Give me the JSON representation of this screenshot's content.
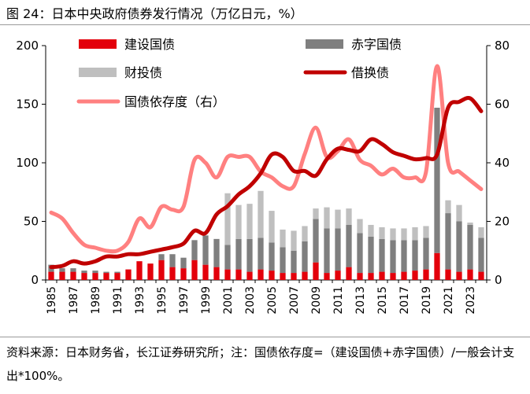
{
  "header": {
    "title": "图 24：日本中央政府债券发行情况（万亿日元，%）"
  },
  "footer": {
    "source": "资料来源：日本财务省，长江证券研究所；注：国债依存度=（建设国债+赤字国债）/一般会计支出*100%。"
  },
  "chart_data": {
    "type": "bar",
    "title": "日本中央政府债券发行情况（万亿日元，%）",
    "xlabel": "",
    "ylabel": "",
    "ylim": [
      0,
      200
    ],
    "y2lim": [
      0,
      80
    ],
    "yticks": [
      "0",
      "50",
      "100",
      "150",
      "200"
    ],
    "y2ticks": [
      "0",
      "20",
      "40",
      "60",
      "80"
    ],
    "years": [
      1985,
      1986,
      1987,
      1988,
      1989,
      1990,
      1991,
      1992,
      1993,
      1994,
      1995,
      1996,
      1997,
      1998,
      1999,
      2000,
      2001,
      2002,
      2003,
      2004,
      2005,
      2006,
      2007,
      2008,
      2009,
      2010,
      2011,
      2012,
      2013,
      2014,
      2015,
      2016,
      2017,
      2018,
      2019,
      2020,
      2021,
      2022,
      2023,
      2024
    ],
    "xtick_labels": [
      "1985",
      "1987",
      "1989",
      "1991",
      "1993",
      "1995",
      "1997",
      "1999",
      "2001",
      "2003",
      "2005",
      "2007",
      "2009",
      "2011",
      "2013",
      "2015",
      "2017",
      "2019",
      "2021",
      "2023"
    ],
    "legend": [
      "建设国债",
      "赤字国债",
      "财投债",
      "借换债",
      "国债依存度（右）"
    ],
    "series": [
      {
        "name": "建设国债",
        "kind": "bar-stack",
        "axis": "left",
        "color": "#e3000b",
        "values": [
          7,
          7,
          7,
          6,
          6,
          6,
          6,
          9,
          16,
          14,
          17,
          11,
          10,
          17,
          13,
          11,
          9,
          9,
          7,
          9,
          8,
          6,
          6,
          7,
          15,
          6,
          8,
          11,
          6,
          6,
          7,
          6,
          7,
          8,
          9,
          23,
          9,
          7,
          9,
          7
        ]
      },
      {
        "name": "赤字国债",
        "kind": "bar-stack",
        "axis": "left",
        "color": "#7f7f7f",
        "values": [
          6,
          3,
          3,
          2,
          2,
          1,
          1,
          0,
          0,
          0,
          5,
          11,
          9,
          17,
          25,
          24,
          21,
          26,
          28,
          27,
          24,
          22,
          19,
          26,
          37,
          38,
          36,
          36,
          34,
          31,
          28,
          28,
          27,
          26,
          27,
          124,
          48,
          43,
          38,
          29
        ]
      },
      {
        "name": "财投债",
        "kind": "bar-stack",
        "axis": "left",
        "color": "#bfbfbf",
        "values": [
          0,
          0,
          0,
          0,
          0,
          0,
          0,
          0,
          0,
          0,
          0,
          0,
          0,
          0,
          0,
          0,
          44,
          29,
          30,
          40,
          27,
          15,
          17,
          13,
          9,
          18,
          16,
          14,
          12,
          10,
          10,
          10,
          10,
          11,
          10,
          0,
          11,
          14,
          2,
          9
        ]
      },
      {
        "name": "借换债",
        "kind": "line",
        "axis": "left",
        "color": "#c00000",
        "values": [
          11,
          12,
          16,
          14,
          16,
          20,
          20,
          22,
          22,
          24,
          26,
          28,
          31,
          42,
          40,
          56,
          63,
          73,
          80,
          91,
          107,
          105,
          93,
          93,
          89,
          103,
          112,
          111,
          110,
          120,
          116,
          109,
          106,
          103,
          104,
          107,
          147,
          152,
          155,
          144
        ]
      },
      {
        "name": "国债依存度（右）",
        "kind": "line",
        "axis": "right",
        "color": "#ff8080",
        "values": [
          23,
          21,
          16,
          12,
          11,
          10,
          10,
          13,
          21,
          18,
          25,
          24,
          25,
          41,
          40,
          35,
          42,
          42,
          42,
          37,
          35,
          32,
          32,
          43,
          52,
          42,
          44,
          48,
          41,
          39,
          36,
          38,
          35,
          35,
          37,
          73,
          40,
          37,
          34,
          31
        ]
      }
    ]
  }
}
